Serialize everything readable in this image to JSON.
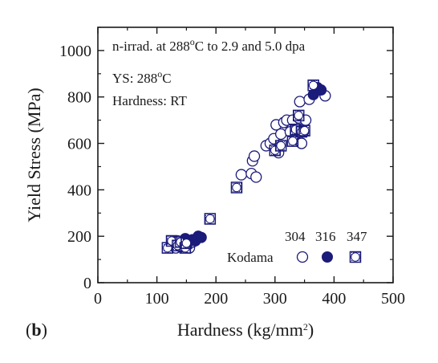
{
  "chart_data": {
    "type": "scatter",
    "panel_label": "b",
    "xlabel": {
      "main": "Hardness (kg/mm",
      "sup": "2",
      "end": ")"
    },
    "ylabel": "Yield Stress (MPa)",
    "xlim": [
      0,
      500
    ],
    "ylim": [
      0,
      1100
    ],
    "xticks": [
      0,
      100,
      200,
      300,
      400,
      500
    ],
    "yticks": [
      0,
      200,
      400,
      600,
      800,
      1000
    ],
    "grid": false,
    "annotations": [
      {
        "id": "cond",
        "parts": [
          {
            "t": "n-irrad. at 288"
          },
          {
            "t": "o",
            "sup": true
          },
          {
            "t": "C to 2.9 and 5.0 dpa"
          }
        ]
      },
      {
        "id": "ys",
        "parts": [
          {
            "t": "YS:  288"
          },
          {
            "t": "o",
            "sup": true
          },
          {
            "t": "C"
          }
        ]
      },
      {
        "id": "hard",
        "parts": [
          {
            "t": "Hardness:  RT"
          }
        ]
      }
    ],
    "legend": {
      "placement": "bottom-right",
      "group_label": "Kodama",
      "entries": [
        {
          "label": "304",
          "marker": "open-circle"
        },
        {
          "label": "316",
          "marker": "filled-circle"
        },
        {
          "label": "347",
          "marker": "dotted-square"
        }
      ]
    },
    "series": [
      {
        "name": "304",
        "marker": "open-circle",
        "points": [
          [
            125,
            160
          ],
          [
            128,
            175
          ],
          [
            132,
            150
          ],
          [
            135,
            180
          ],
          [
            140,
            155
          ],
          [
            145,
            170
          ],
          [
            150,
            160
          ],
          [
            155,
            150
          ],
          [
            160,
            175
          ],
          [
            243,
            465
          ],
          [
            260,
            470
          ],
          [
            262,
            525
          ],
          [
            265,
            545
          ],
          [
            268,
            455
          ],
          [
            285,
            590
          ],
          [
            292,
            600
          ],
          [
            298,
            620
          ],
          [
            302,
            680
          ],
          [
            306,
            560
          ],
          [
            310,
            640
          ],
          [
            315,
            690
          ],
          [
            320,
            700
          ],
          [
            326,
            650
          ],
          [
            330,
            700
          ],
          [
            335,
            640
          ],
          [
            340,
            710
          ],
          [
            342,
            780
          ],
          [
            345,
            600
          ],
          [
            348,
            650
          ],
          [
            352,
            700
          ],
          [
            358,
            790
          ],
          [
            372,
            830
          ],
          [
            385,
            805
          ]
        ]
      },
      {
        "name": "316",
        "marker": "filled-circle",
        "points": [
          [
            148,
            190
          ],
          [
            155,
            180
          ],
          [
            160,
            185
          ],
          [
            165,
            180
          ],
          [
            170,
            200
          ],
          [
            175,
            195
          ],
          [
            365,
            810
          ],
          [
            372,
            840
          ],
          [
            378,
            830
          ]
        ]
      },
      {
        "name": "347",
        "marker": "dotted-square",
        "points": [
          [
            118,
            150
          ],
          [
            125,
            180
          ],
          [
            135,
            160
          ],
          [
            140,
            175
          ],
          [
            148,
            150
          ],
          [
            150,
            170
          ],
          [
            190,
            275
          ],
          [
            235,
            410
          ],
          [
            300,
            570
          ],
          [
            310,
            590
          ],
          [
            330,
            610
          ],
          [
            335,
            660
          ],
          [
            340,
            720
          ],
          [
            345,
            650
          ],
          [
            350,
            655
          ],
          [
            365,
            850
          ]
        ]
      }
    ]
  }
}
